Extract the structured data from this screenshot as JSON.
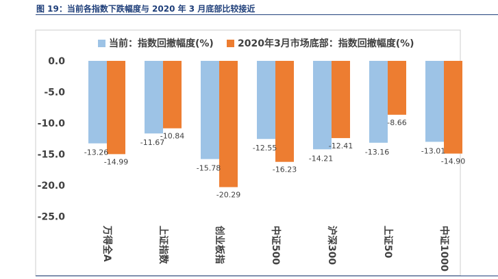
{
  "figure_title": "图 19：当前各指数下跌幅度与 2020 年 3 月底部比较接近",
  "chart_data": {
    "type": "bar",
    "categories": [
      "万得全A",
      "上证指数",
      "创业板指",
      "中证500",
      "沪深300",
      "上证50",
      "中证1000"
    ],
    "series": [
      {
        "name": "当前：指数回撤幅度(%)",
        "color": "#9dc3e6",
        "values": [
          -13.26,
          -11.67,
          -15.78,
          -12.55,
          -14.21,
          -13.16,
          -13.01
        ],
        "labels": [
          "-13.26",
          "-11.67",
          "-15.78",
          "-12.55",
          "-14.21",
          "-13.16",
          "-13.01"
        ]
      },
      {
        "name": "2020年3月市场底部：指数回撤幅度(%)",
        "color": "#ed7d31",
        "values": [
          -14.99,
          -10.84,
          -20.29,
          -16.23,
          -12.41,
          -8.66,
          -14.9
        ],
        "labels": [
          "-14.99",
          "-10.84",
          "-20.29",
          "-16.23",
          "-12.41",
          "-8.66",
          "-14.90"
        ]
      }
    ],
    "ylim": [
      -25,
      0
    ],
    "yticks": [
      0,
      -5,
      -10,
      -15,
      -20,
      -25
    ],
    "ytick_labels": [
      "0.0",
      "-5.0",
      "-10.0",
      "-15.0",
      "-20.0",
      "-25.0"
    ],
    "legend_position": "top",
    "grid": false
  }
}
